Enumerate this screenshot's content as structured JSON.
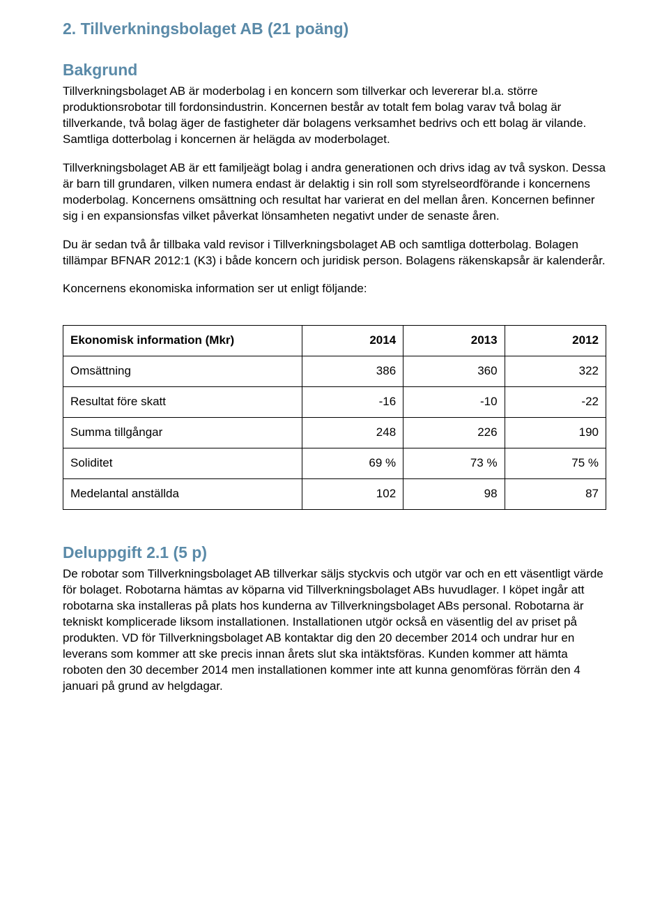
{
  "heading_main": "2.  Tillverkningsbolaget AB (21 poäng)",
  "heading_bakgrund": "Bakgrund",
  "para1": "Tillverkningsbolaget AB är moderbolag i en koncern som tillverkar och levererar bl.a. större produktionsrobotar till fordonsindustrin. Koncernen består av totalt fem bolag varav två bolag är tillverkande, två bolag äger de fastigheter där bolagens verksamhet bedrivs och ett bolag är vilande. Samtliga dotterbolag i koncernen är helägda av moderbolaget.",
  "para2": "Tillverkningsbolaget AB är ett familjeägt bolag i andra generationen och drivs idag av två syskon. Dessa är barn till grundaren, vilken numera endast är delaktig i sin roll som styrelseordförande i koncernens moderbolag. Koncernens omsättning och resultat har varierat en del mellan åren. Koncernen befinner sig i en expansionsfas vilket påverkat lönsamheten negativt under de senaste åren.",
  "para3": "Du är sedan två år tillbaka vald revisor i Tillverkningsbolaget AB och samtliga dotterbolag. Bolagen tillämpar BFNAR 2012:1 (K3) i både koncern och juridisk person. Bolagens räkenskapsår är kalenderår.",
  "para4": "Koncernens ekonomiska information ser ut enligt följande:",
  "table": {
    "header_label": "Ekonomisk information (Mkr)",
    "years": [
      "2014",
      "2013",
      "2012"
    ],
    "rows": [
      {
        "label": "Omsättning",
        "v": [
          "386",
          "360",
          "322"
        ]
      },
      {
        "label": "Resultat före skatt",
        "v": [
          "-16",
          "-10",
          "-22"
        ]
      },
      {
        "label": "Summa tillgångar",
        "v": [
          "248",
          "226",
          "190"
        ]
      },
      {
        "label": "Soliditet",
        "v": [
          "69 %",
          "73 %",
          "75 %"
        ]
      },
      {
        "label": "Medelantal anställda",
        "v": [
          "102",
          "98",
          "87"
        ]
      }
    ]
  },
  "heading_task": "Deluppgift 2.1 (5 p)",
  "task_body": "De robotar som Tillverkningsbolaget AB tillverkar säljs styckvis och utgör var och en ett väsentligt värde för bolaget. Robotarna hämtas av köparna vid Tillverkningsbolaget ABs huvudlager. I köpet ingår att robotarna ska installeras på plats hos kunderna av Tillverkningsbolaget ABs personal. Robotarna är tekniskt komplicerade liksom installationen. Installationen utgör också en väsentlig del av priset på produkten. VD för Tillverkningsbolaget AB kontaktar dig den 20 december 2014 och undrar hur en leverans som kommer att ske precis innan årets slut ska intäktsföras. Kunden kommer att hämta roboten den 30 december 2014 men installationen kommer inte att kunna genomföras förrän den 4 januari på grund av helgdagar."
}
